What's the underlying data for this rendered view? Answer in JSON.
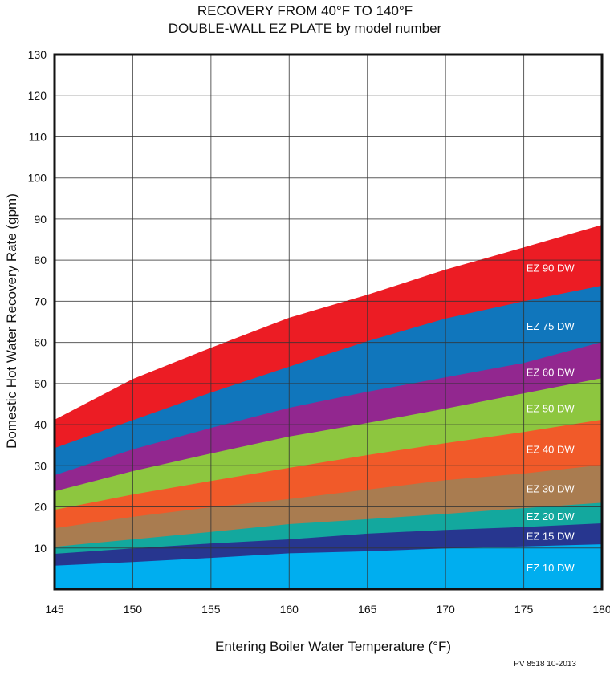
{
  "chart_data": {
    "type": "area",
    "stacked": false,
    "title": [
      "RECOVERY FROM 40°F TO 140°F",
      "DOUBLE-WALL EZ PLATE by model number"
    ],
    "xlabel": "Entering Boiler Water Temperature (°F)",
    "ylabel": "Domestic Hot Water Recovery  Rate (gpm)",
    "xlim": [
      145,
      180
    ],
    "ylim": [
      0,
      130
    ],
    "xticks": [
      145,
      150,
      155,
      160,
      165,
      170,
      175,
      180
    ],
    "yticks": [
      10,
      20,
      30,
      40,
      50,
      60,
      70,
      80,
      90,
      100,
      110,
      120,
      130
    ],
    "grid": true,
    "x": [
      145,
      150,
      155,
      160,
      165,
      170,
      175,
      180
    ],
    "series": [
      {
        "name": "EZ 90 DW",
        "color": "#ec1c24",
        "values": [
          41.2,
          51.1,
          58.7,
          66.0,
          71.6,
          77.7,
          83.1,
          88.6
        ]
      },
      {
        "name": "EZ 75 DW",
        "color": "#1076bc",
        "values": [
          34.3,
          41.1,
          47.8,
          54.1,
          60.3,
          65.8,
          70.0,
          73.8
        ]
      },
      {
        "name": "EZ 60 DW",
        "color": "#92278f",
        "values": [
          27.7,
          34.0,
          39.2,
          44.1,
          48.0,
          51.5,
          55.0,
          60.1
        ]
      },
      {
        "name": "EZ 50 DW",
        "color": "#8dc63f",
        "values": [
          23.8,
          28.7,
          33.0,
          37.1,
          40.4,
          43.9,
          47.6,
          51.3
        ]
      },
      {
        "name": "EZ 40 DW",
        "color": "#f15a29",
        "values": [
          19.3,
          23.0,
          26.3,
          29.5,
          32.6,
          35.5,
          38.2,
          41.2
        ]
      },
      {
        "name": "EZ 30 DW",
        "color": "#a97c50",
        "values": [
          14.8,
          17.6,
          19.9,
          21.9,
          24.2,
          26.5,
          28.1,
          30.2
        ]
      },
      {
        "name": "EZ 20 DW",
        "color": "#13a89e",
        "values": [
          10.3,
          12.1,
          13.9,
          15.8,
          17.0,
          18.3,
          19.7,
          21.0
        ]
      },
      {
        "name": "EZ 15 DW",
        "color": "#27368f",
        "values": [
          8.6,
          9.9,
          11.1,
          12.1,
          13.5,
          14.4,
          15.1,
          16.0
        ]
      },
      {
        "name": "EZ 10 DW",
        "color": "#00aeef",
        "values": [
          5.7,
          6.6,
          7.6,
          8.7,
          9.2,
          9.9,
          10.4,
          10.9
        ]
      }
    ],
    "footnote": "PV 8518  10-2013"
  }
}
